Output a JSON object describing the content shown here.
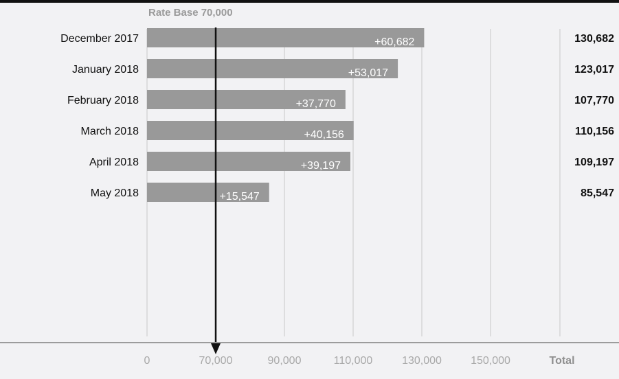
{
  "chart_data": {
    "type": "bar",
    "orientation": "horizontal",
    "reference_label": "Rate Base 70,000",
    "reference_value": 70000,
    "categories": [
      "December 2017",
      "January 2018",
      "February 2018",
      "March 2018",
      "April 2018",
      "May 2018"
    ],
    "values": [
      60682,
      53017,
      37770,
      40156,
      39197,
      15547
    ],
    "bar_labels": [
      "+60,682",
      "+53,017",
      "+37,770",
      "+40,156",
      "+39,197",
      "+15,547"
    ],
    "totals": [
      "130,682",
      "123,017",
      "107,770",
      "110,156",
      "109,197",
      "85,547"
    ],
    "x_ticks": [
      "0",
      "70,000",
      "90,000",
      "110,000",
      "130,000",
      "150,000"
    ],
    "x_tick_values": [
      0,
      70000,
      90000,
      110000,
      130000,
      150000
    ],
    "total_column_label": "Total",
    "grid": true,
    "colors": {
      "bar": "#999999",
      "arrow": "#111111",
      "gridline": "#c8c8c8",
      "background": "#f2f2f4"
    }
  }
}
